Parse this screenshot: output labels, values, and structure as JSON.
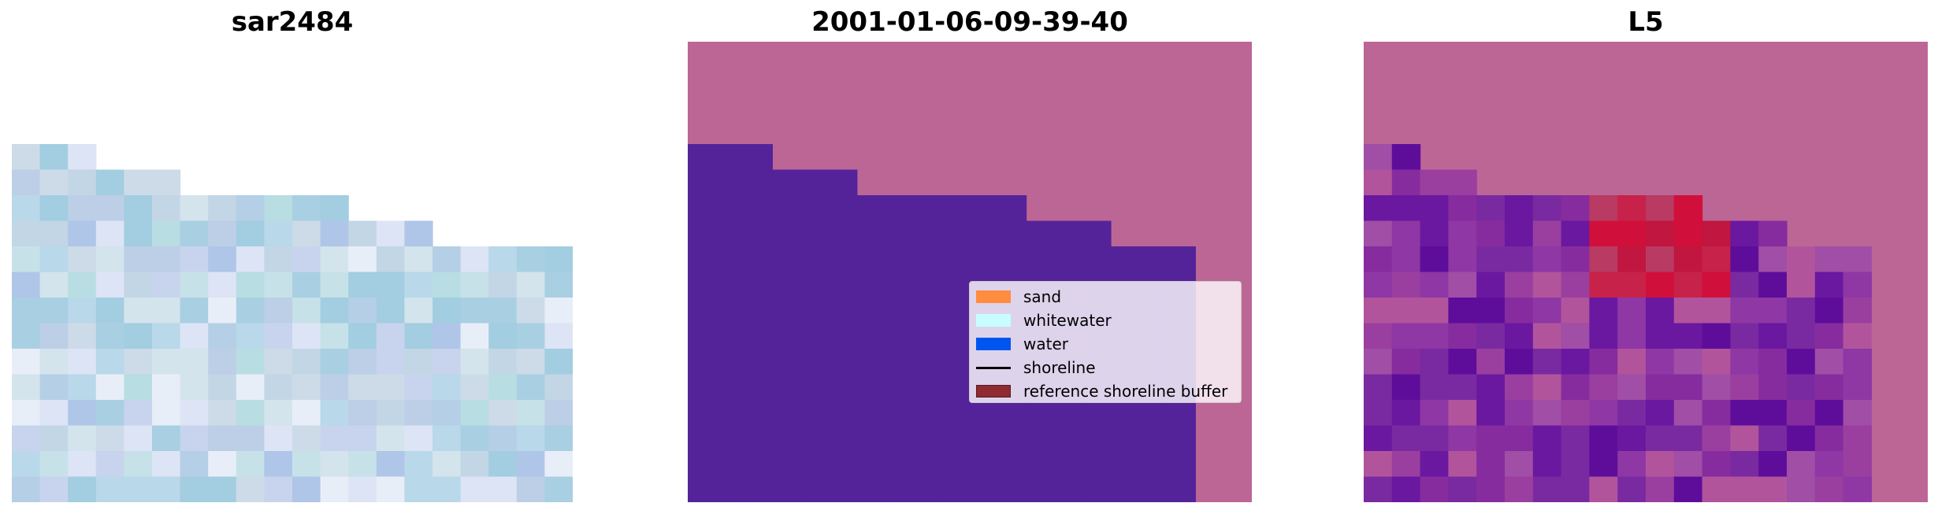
{
  "titles": {
    "left": "sar2484",
    "center": "2001-01-06-09-39-40",
    "right": "L5"
  },
  "legend": {
    "items": [
      {
        "label": "sand",
        "color": "#ff8c3f",
        "kind": "patch"
      },
      {
        "label": "whitewater",
        "color": "#c8fdff",
        "kind": "patch"
      },
      {
        "label": "water",
        "color": "#0055ee",
        "kind": "patch"
      },
      {
        "label": "shoreline",
        "color": "#000000",
        "kind": "line"
      },
      {
        "label": "reference shoreline buffer",
        "color": "#8e2b33",
        "kind": "patch"
      }
    ]
  },
  "colors": {
    "classification_sand_area": "#bc6696",
    "classification_water_area": "#552399",
    "ndwi_land": "#bc6696"
  }
}
